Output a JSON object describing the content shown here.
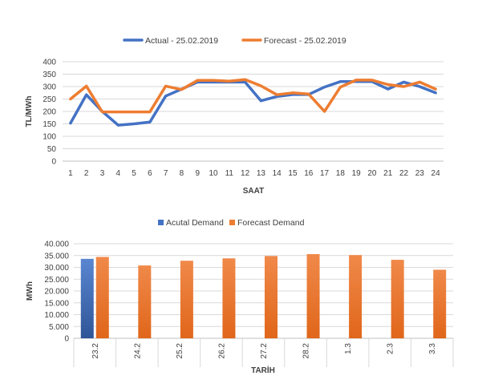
{
  "chart_data": [
    {
      "type": "line",
      "title": "",
      "xlabel": "SAAT",
      "ylabel": "TL/MWh",
      "ylim": [
        0,
        400
      ],
      "yticks": [
        0,
        50,
        100,
        150,
        200,
        250,
        300,
        350,
        400
      ],
      "legend_position": "top",
      "x": [
        "1",
        "2",
        "3",
        "4",
        "5",
        "6",
        "7",
        "8",
        "9",
        "10",
        "11",
        "12",
        "13",
        "14",
        "15",
        "16",
        "17",
        "18",
        "19",
        "20",
        "21",
        "22",
        "23",
        "24"
      ],
      "series": [
        {
          "name": "Actual - 25.02.2019",
          "color": "#4472C4",
          "values": [
            153,
            267,
            200,
            145,
            150,
            157,
            262,
            290,
            318,
            318,
            318,
            318,
            243,
            260,
            268,
            268,
            298,
            320,
            320,
            320,
            290,
            318,
            300,
            275
          ]
        },
        {
          "name": "Forecast - 25.02.2019",
          "color": "#ED7D31",
          "values": [
            250,
            302,
            198,
            198,
            198,
            198,
            302,
            288,
            325,
            325,
            322,
            328,
            303,
            267,
            275,
            270,
            200,
            298,
            326,
            326,
            308,
            300,
            318,
            290
          ]
        }
      ]
    },
    {
      "type": "bar",
      "title": "",
      "xlabel": "TARİH",
      "ylabel": "MWh",
      "ylim": [
        0,
        40000
      ],
      "yticks": [
        "0",
        "5.000",
        "10.000",
        "15.000",
        "20.000",
        "25.000",
        "30.000",
        "35.000",
        "40.000"
      ],
      "ytick_values": [
        0,
        5000,
        10000,
        15000,
        20000,
        25000,
        30000,
        35000,
        40000
      ],
      "legend_position": "top",
      "categories": [
        "23.2",
        "24.2",
        "25.2",
        "26.2",
        "27.2",
        "28.2",
        "1.3",
        "2.3",
        "3.3"
      ],
      "series": [
        {
          "name": "Acutal Demand",
          "color": "#4472C4",
          "values": [
            33600,
            null,
            null,
            null,
            null,
            null,
            null,
            null,
            null
          ]
        },
        {
          "name": "Forecast Demand",
          "color": "#ED7D31",
          "values": [
            34400,
            30800,
            32800,
            33800,
            34800,
            35600,
            35200,
            33200,
            29000
          ]
        }
      ]
    }
  ]
}
